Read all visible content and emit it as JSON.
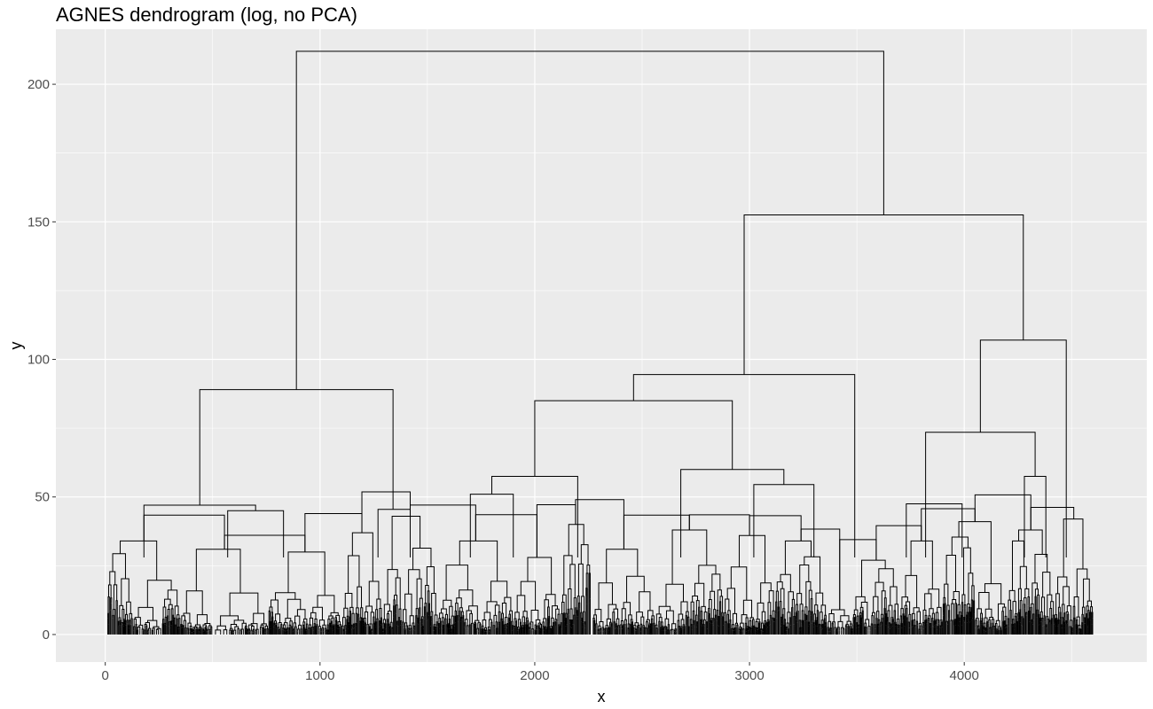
{
  "chart_data": {
    "type": "dendrogram",
    "title": "AGNES dendrogram (log, no PCA)",
    "xlabel": "x",
    "ylabel": "y",
    "xlim": [
      -230,
      4850
    ],
    "ylim": [
      -10,
      220
    ],
    "x_ticks": [
      0,
      1000,
      2000,
      3000,
      4000
    ],
    "x_tick_labels": [
      "0",
      "1000",
      "2000",
      "3000",
      "4000"
    ],
    "y_ticks": [
      0,
      50,
      100,
      150,
      200
    ],
    "y_tick_labels": [
      "0",
      "50",
      "100",
      "150",
      "200"
    ],
    "grid": true,
    "panel_background": "#ebebeb",
    "grid_color": "#ffffff",
    "line_color": "#000000",
    "leaf_count": 4600,
    "major_merges": [
      {
        "height": 212,
        "x_left": 890,
        "x_right": 3625
      },
      {
        "height": 152.5,
        "x_left": 2975,
        "x_right": 4275
      },
      {
        "height": 107,
        "x_left": 4075,
        "x_right": 4475
      },
      {
        "height": 94.5,
        "x_left": 2460,
        "x_right": 3490
      },
      {
        "height": 89,
        "x_left": 440,
        "x_right": 1340
      },
      {
        "height": 85,
        "x_left": 2000,
        "x_right": 2920
      },
      {
        "height": 73.5,
        "x_left": 3820,
        "x_right": 4330
      },
      {
        "height": 60,
        "x_left": 2680,
        "x_right": 3160
      },
      {
        "height": 57.5,
        "x_left": 1800,
        "x_right": 2200
      },
      {
        "height": 57.5,
        "x_left": 4280,
        "x_right": 4380
      },
      {
        "height": 54.5,
        "x_left": 3020,
        "x_right": 3300
      },
      {
        "height": 51,
        "x_left": 1700,
        "x_right": 1900
      },
      {
        "height": 47,
        "x_left": 180,
        "x_right": 700
      },
      {
        "height": 47.5,
        "x_left": 3730,
        "x_right": 3990
      },
      {
        "height": 45,
        "x_left": 570,
        "x_right": 830
      },
      {
        "height": 45.5,
        "x_left": 1270,
        "x_right": 1420
      }
    ]
  }
}
